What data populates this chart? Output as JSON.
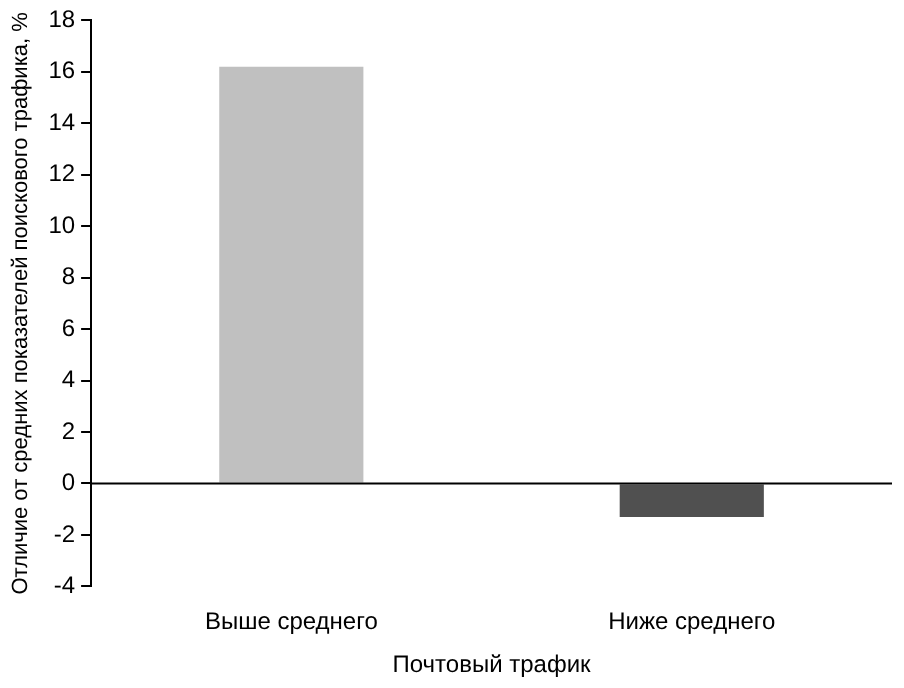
{
  "chart_data": {
    "type": "bar",
    "ylabel": "Отличие от средних показателей поискового трафика, %",
    "xlabel": "Почтовый трафик",
    "categories": [
      "Выше среднего",
      "Ниже среднего"
    ],
    "values": [
      16.2,
      -1.3
    ],
    "colors": [
      "#c0c0c0",
      "#505050"
    ],
    "ylim": [
      -4,
      18
    ],
    "yticks": [
      -4,
      -2,
      0,
      2,
      4,
      6,
      8,
      10,
      12,
      14,
      16,
      18
    ],
    "ref_lines": [
      {
        "axis": "y",
        "value": 0,
        "color": "#000000"
      }
    ],
    "grid": false,
    "legend": false
  }
}
